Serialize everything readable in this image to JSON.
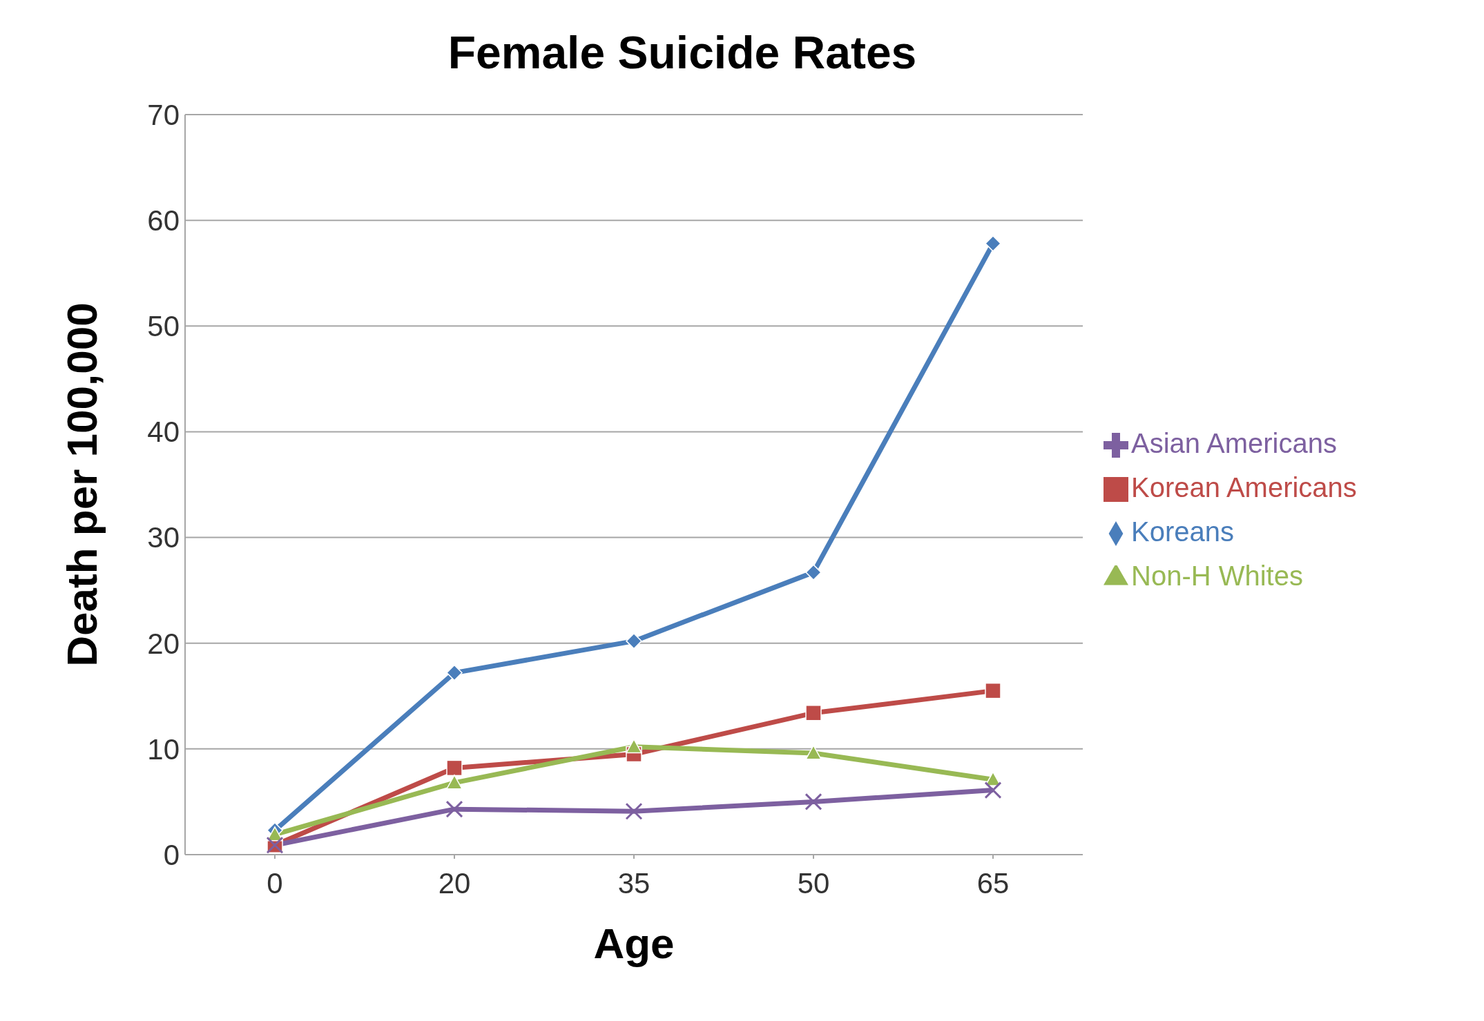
{
  "chart_data": {
    "type": "line",
    "title": "Female Suicide Rates",
    "xlabel": "Age",
    "ylabel": "Death per 100,000",
    "categories": [
      "0",
      "20",
      "35",
      "50",
      "65"
    ],
    "ylim": [
      0,
      70
    ],
    "yticks": [
      0,
      10,
      20,
      30,
      40,
      50,
      60,
      70
    ],
    "grid": "y",
    "legend": "right",
    "line_style": "solid",
    "series": [
      {
        "name": "Koreans",
        "color": "#4a7ebb",
        "marker": "diamond",
        "values": [
          2.3,
          17.2,
          20.2,
          26.7,
          57.8
        ]
      },
      {
        "name": "Korean Americans",
        "color": "#be4b48",
        "marker": "square",
        "values": [
          0.9,
          8.2,
          9.5,
          13.4,
          15.5
        ]
      },
      {
        "name": "Non-H Whites",
        "color": "#98b954",
        "marker": "triangle",
        "values": [
          1.9,
          6.8,
          10.2,
          9.6,
          7.1
        ]
      },
      {
        "name": "Asian Americans",
        "color": "#7d60a0",
        "marker": "cross",
        "values": [
          0.9,
          4.3,
          4.1,
          5.0,
          6.1
        ]
      }
    ]
  }
}
